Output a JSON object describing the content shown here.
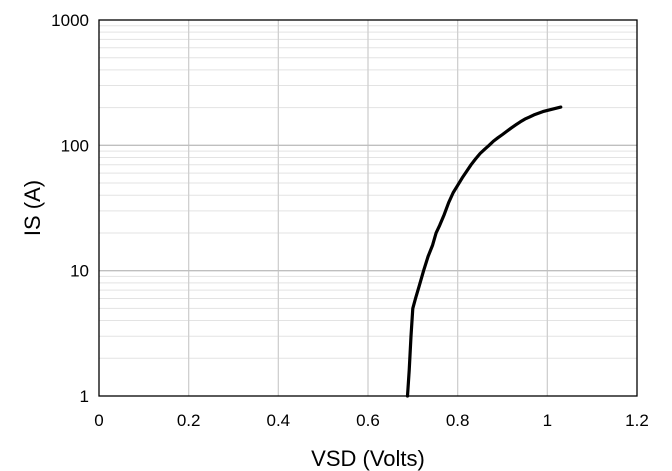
{
  "chart_data": {
    "type": "line",
    "title": "",
    "xlabel": "VSD (Volts)",
    "ylabel": "IS (A)",
    "xlim": [
      0,
      1.2
    ],
    "ylim": [
      1,
      1000
    ],
    "y_scale": "log",
    "x_ticks": [
      "0",
      "0.2",
      "0.4",
      "0.6",
      "0.8",
      "1",
      "1.2"
    ],
    "y_ticks": [
      "1",
      "10",
      "100",
      "1000"
    ],
    "grid": true,
    "legend": "none",
    "series": [
      {
        "color": "#000000",
        "x": [
          0.688,
          0.692,
          0.696,
          0.7,
          0.706,
          0.714,
          0.724,
          0.734,
          0.744,
          0.752,
          0.76,
          0.77,
          0.78,
          0.79,
          0.8,
          0.81,
          0.82,
          0.83,
          0.84,
          0.85,
          0.86,
          0.87,
          0.88,
          0.89,
          0.9,
          0.91,
          0.92,
          0.93,
          0.94,
          0.95,
          0.96,
          0.97,
          0.98,
          0.99,
          1.0,
          1.01,
          1.02,
          1.03
        ],
        "y": [
          1.0,
          1.6,
          3.0,
          5.0,
          6.0,
          7.5,
          10.0,
          13.0,
          16.0,
          20.0,
          23.0,
          28.0,
          35.0,
          42.0,
          48.0,
          55.0,
          62.0,
          70.0,
          78.0,
          86.0,
          93.0,
          100.0,
          108.0,
          115.0,
          122.0,
          130.0,
          138.0,
          146.0,
          154.0,
          162.0,
          168.0,
          175.0,
          180.0,
          186.0,
          190.0,
          194.0,
          198.0,
          202.0
        ]
      }
    ]
  }
}
